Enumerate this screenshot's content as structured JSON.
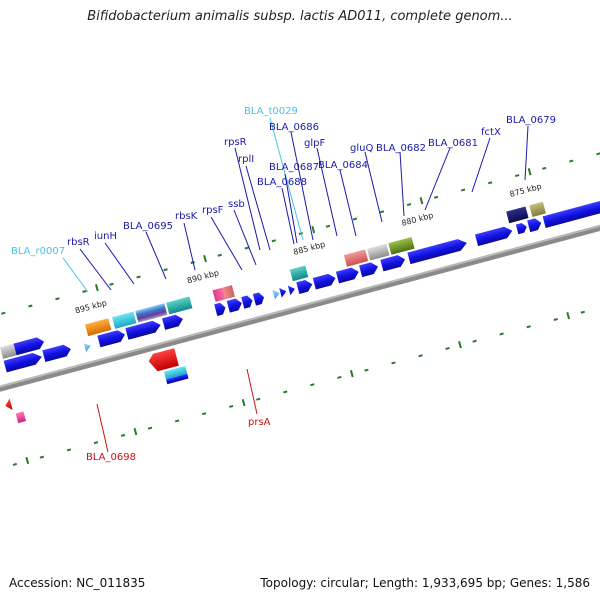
{
  "title": "Bifidobacterium animalis subsp. lactis AD011, complete genom...",
  "footer": {
    "accession": "Accession: NC_011835",
    "topology": "Topology: circular; Length: 1,933,695 bp; Genes: 1,586"
  },
  "colors": {
    "backbone": "#808080",
    "cds": "#1a1adc",
    "label_blue": "#1a1aaa",
    "label_cyan": "#44c4e8",
    "label_red": "#cc1111",
    "tick": "#2a7a2a"
  },
  "scale_labels": [
    "875 kbp",
    "880 kbp",
    "885 kbp",
    "890 kbp",
    "895 kbp"
  ],
  "gene_labels_forward": [
    "BLA_r0007",
    "rbsR",
    "iunH",
    "BLA_0695",
    "rbsK",
    "rpsF",
    "ssb",
    "rpsR",
    "rplI",
    "BLA_t0029",
    "BLA_0686",
    "BLA_0687",
    "BLA_0688",
    "glpF",
    "BLA_0684",
    "gluQ",
    "BLA_0682",
    "BLA_0681",
    "fctX",
    "BLA_0679"
  ],
  "gene_labels_reverse": [
    "BLA_0698",
    "prsA"
  ]
}
